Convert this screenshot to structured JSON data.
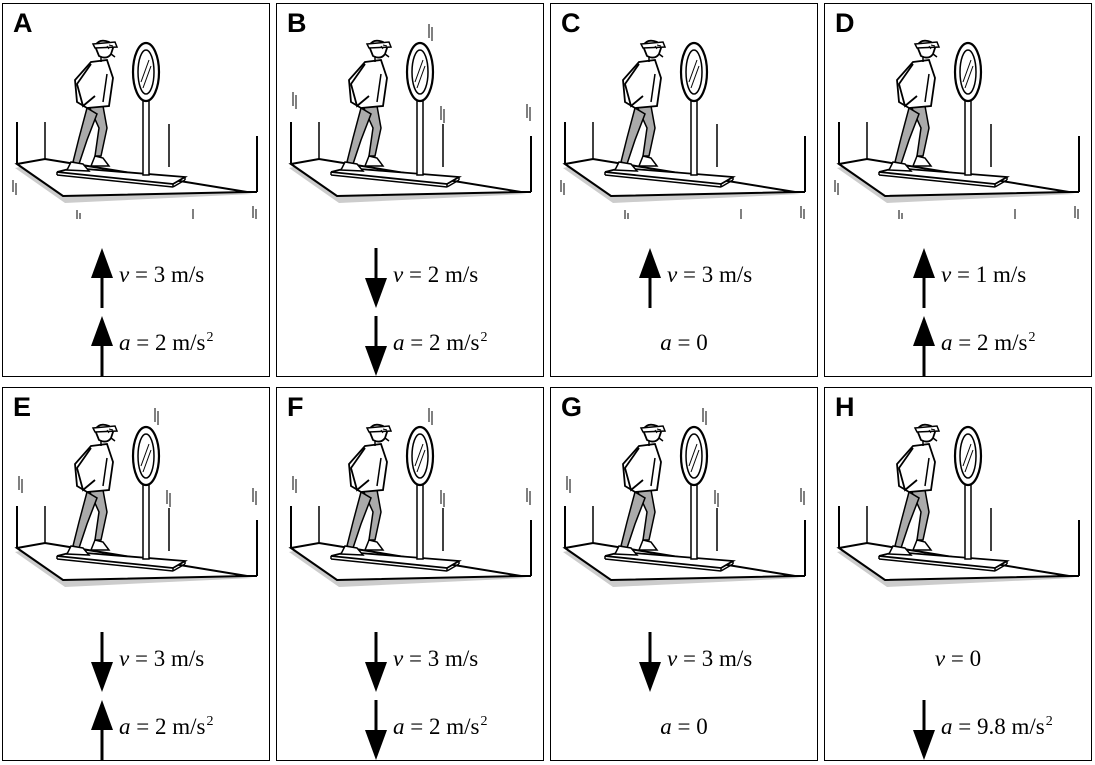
{
  "panels": [
    {
      "label": "A",
      "v": {
        "text": "v = 3 m/s",
        "symbol": "v",
        "value": "3",
        "unit": "m/s",
        "arrow": "up"
      },
      "a": {
        "text": "a = 2 m/s²",
        "symbol": "a",
        "value": "2",
        "unit": "m/s",
        "power": "2",
        "arrow": "up"
      }
    },
    {
      "label": "B",
      "v": {
        "text": "v = 2 m/s",
        "symbol": "v",
        "value": "2",
        "unit": "m/s",
        "arrow": "down"
      },
      "a": {
        "text": "a = 2 m/s²",
        "symbol": "a",
        "value": "2",
        "unit": "m/s",
        "power": "2",
        "arrow": "down"
      }
    },
    {
      "label": "C",
      "v": {
        "text": "v = 3 m/s",
        "symbol": "v",
        "value": "3",
        "unit": "m/s",
        "arrow": "up"
      },
      "a": {
        "text": "a = 0",
        "symbol": "a",
        "value": "0",
        "unit": "",
        "power": "",
        "arrow": "none"
      }
    },
    {
      "label": "D",
      "v": {
        "text": "v = 1 m/s",
        "symbol": "v",
        "value": "1",
        "unit": "m/s",
        "arrow": "up"
      },
      "a": {
        "text": "a = 2 m/s²",
        "symbol": "a",
        "value": "2",
        "unit": "m/s",
        "power": "2",
        "arrow": "up"
      }
    },
    {
      "label": "E",
      "v": {
        "text": "v = 3 m/s",
        "symbol": "v",
        "value": "3",
        "unit": "m/s",
        "arrow": "down"
      },
      "a": {
        "text": "a = 2 m/s²",
        "symbol": "a",
        "value": "2",
        "unit": "m/s",
        "power": "2",
        "arrow": "up"
      }
    },
    {
      "label": "F",
      "v": {
        "text": "v = 3 m/s",
        "symbol": "v",
        "value": "3",
        "unit": "m/s",
        "arrow": "down"
      },
      "a": {
        "text": "a = 2 m/s²",
        "symbol": "a",
        "value": "2",
        "unit": "m/s",
        "power": "2",
        "arrow": "down"
      }
    },
    {
      "label": "G",
      "v": {
        "text": "v = 3 m/s",
        "symbol": "v",
        "value": "3",
        "unit": "m/s",
        "arrow": "down"
      },
      "a": {
        "text": "a = 0",
        "symbol": "a",
        "value": "0",
        "unit": "",
        "power": "",
        "arrow": "none"
      }
    },
    {
      "label": "H",
      "v": {
        "text": "v = 0",
        "symbol": "v",
        "value": "0",
        "unit": "",
        "arrow": "none"
      },
      "a": {
        "text": "a = 9.8 m/s²",
        "symbol": "a",
        "value": "9.8",
        "unit": "m/s",
        "power": "2",
        "arrow": "down"
      }
    }
  ],
  "colors": {
    "line": "#000000",
    "pants": "#aaaaaa",
    "shadow": "#cccccc"
  },
  "icons": {
    "scene": "elevator-with-person-and-mirror-icon",
    "arrow_up": "arrow-up-icon",
    "arrow_down": "arrow-down-icon"
  }
}
